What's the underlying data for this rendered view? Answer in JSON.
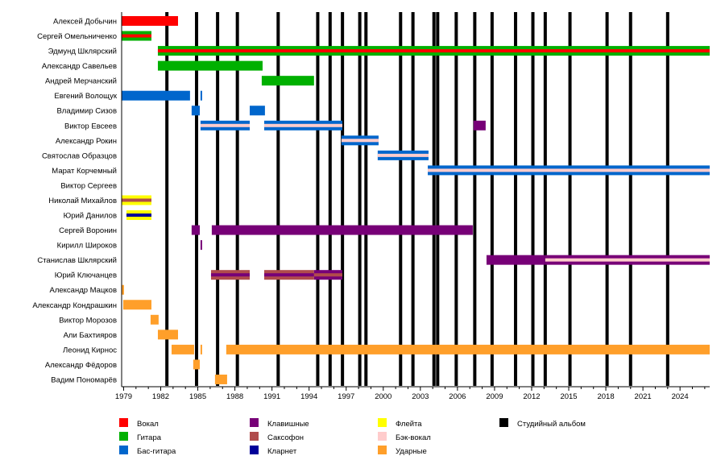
{
  "chart_data": {
    "type": "timeline",
    "title": "",
    "xlim": [
      1978.84,
      2026.4
    ],
    "x_ticks": [
      1979,
      1982,
      1985,
      1988,
      1991,
      1994,
      1997,
      2000,
      2003,
      2006,
      2009,
      2012,
      2015,
      2018,
      2021,
      2024
    ],
    "members": [
      "Алексей Добычин",
      "Сергей Омельниченко",
      "Эдмунд Шклярский",
      "Александр Савельев",
      "Андрей Мерчанский",
      "Евгений Волощук",
      "Владимир Сизов",
      "Виктор Евсеев",
      "Александр Рокин",
      "Святослав Образцов",
      "Марат Корчемный",
      "Виктор Сергеев",
      "Николай Михайлов",
      "Юрий Данилов",
      "Сергей Воронин",
      "Кирилл Широков",
      "Станислав Шклярский",
      "Юрий Ключанцев",
      "Александр Мацков",
      "Александр Кондрашкин",
      "Виктор Морозов",
      "Али Бахтияров",
      "Леонид Кирнос",
      "Александр Фёдоров",
      "Вадим Пономарёв"
    ],
    "roles": {
      "vocal": {
        "label": "Вокал",
        "color": "#ff0000"
      },
      "guitar": {
        "label": "Гитара",
        "color": "#00b000"
      },
      "bass": {
        "label": "Бас-гитара",
        "color": "#0066cc"
      },
      "keys": {
        "label": "Клавишные",
        "color": "#770077"
      },
      "sax": {
        "label": "Саксофон",
        "color": "#b04c4c"
      },
      "clarinet": {
        "label": "Кларнет",
        "color": "#000099"
      },
      "flute": {
        "label": "Флейта",
        "color": "#ffff00"
      },
      "backing": {
        "label": "Бэк-вокал",
        "color": "#ffcccc"
      },
      "drums": {
        "label": "Ударные",
        "color": "#ff9f2a"
      },
      "album": {
        "label": "Студийный альбом",
        "color": "#000000"
      }
    },
    "legend_order": [
      "vocal",
      "guitar",
      "bass",
      "keys",
      "sax",
      "clarinet",
      "flute",
      "backing",
      "drums",
      "album"
    ],
    "legend_placement": "bottom",
    "bars": [
      {
        "member": 0,
        "start": 1978.84,
        "end": 1983.4,
        "role": "vocal"
      },
      {
        "member": 1,
        "start": 1978.84,
        "end": 1981.25,
        "role": "guitar",
        "stripe": "vocal"
      },
      {
        "member": 2,
        "start": 1981.77,
        "end": 2026.4,
        "role": "guitar",
        "stripe": "vocal"
      },
      {
        "member": 3,
        "start": 1981.77,
        "end": 1990.24,
        "role": "guitar"
      },
      {
        "member": 4,
        "start": 1990.17,
        "end": 1994.4,
        "role": "guitar"
      },
      {
        "member": 5,
        "start": 1978.84,
        "end": 1984.37,
        "role": "bass"
      },
      {
        "member": 5,
        "start": 1985.22,
        "end": 1985.35,
        "role": "bass"
      },
      {
        "member": 6,
        "start": 1984.5,
        "end": 1985.16,
        "role": "bass"
      },
      {
        "member": 6,
        "start": 1989.2,
        "end": 1990.43,
        "role": "bass"
      },
      {
        "member": 7,
        "start": 1985.22,
        "end": 1989.2,
        "role": "bass",
        "stripe": "backing"
      },
      {
        "member": 7,
        "start": 1990.37,
        "end": 1996.69,
        "role": "bass",
        "stripe": "backing"
      },
      {
        "member": 7,
        "start": 2007.3,
        "end": 2008.28,
        "role": "keys"
      },
      {
        "member": 8,
        "start": 1996.62,
        "end": 1999.62,
        "role": "bass",
        "stripe": "backing"
      },
      {
        "member": 9,
        "start": 1999.55,
        "end": 2003.66,
        "role": "bass",
        "stripe": "backing"
      },
      {
        "member": 10,
        "start": 2003.6,
        "end": 2026.4,
        "role": "bass",
        "stripe": "backing"
      },
      {
        "member": 12,
        "start": 1978.84,
        "end": 1981.25,
        "role": "flute",
        "stripe": "sax"
      },
      {
        "member": 13,
        "start": 1979.23,
        "end": 1981.25,
        "role": "flute",
        "stripe": "clarinet"
      },
      {
        "member": 14,
        "start": 1984.5,
        "end": 1985.16,
        "role": "keys"
      },
      {
        "member": 14,
        "start": 1986.13,
        "end": 2007.24,
        "role": "keys"
      },
      {
        "member": 15,
        "start": 1985.22,
        "end": 1985.35,
        "role": "keys"
      },
      {
        "member": 16,
        "start": 2008.35,
        "end": 2013.1,
        "role": "keys"
      },
      {
        "member": 16,
        "start": 2013.1,
        "end": 2026.4,
        "role": "keys",
        "stripe": "backing"
      },
      {
        "member": 17,
        "start": 1986.07,
        "end": 1989.2,
        "role": "sax",
        "stripe": "keys"
      },
      {
        "member": 17,
        "start": 1990.37,
        "end": 1994.4,
        "role": "sax",
        "stripe": "keys"
      },
      {
        "member": 17,
        "start": 1994.4,
        "end": 1996.69,
        "role": "keys",
        "stripe": "sax"
      },
      {
        "member": 18,
        "start": 1978.84,
        "end": 1979.03,
        "role": "drums"
      },
      {
        "member": 19,
        "start": 1978.97,
        "end": 1981.25,
        "role": "drums"
      },
      {
        "member": 20,
        "start": 1981.18,
        "end": 1981.83,
        "role": "drums"
      },
      {
        "member": 21,
        "start": 1981.77,
        "end": 1983.4,
        "role": "drums"
      },
      {
        "member": 22,
        "start": 1982.88,
        "end": 1984.7,
        "role": "drums"
      },
      {
        "member": 22,
        "start": 1985.22,
        "end": 1985.35,
        "role": "drums"
      },
      {
        "member": 22,
        "start": 1987.3,
        "end": 2026.4,
        "role": "drums"
      },
      {
        "member": 23,
        "start": 1984.63,
        "end": 1985.16,
        "role": "drums"
      },
      {
        "member": 24,
        "start": 1986.39,
        "end": 1987.37,
        "role": "drums"
      }
    ],
    "albums": [
      1982.5,
      1984.9,
      1986.6,
      1988.2,
      1991.5,
      1994.7,
      1995.7,
      1996.7,
      1998.1,
      1998.6,
      2001.4,
      2002.4,
      2004.1,
      2004.4,
      2005.9,
      2007.4,
      2008.8,
      2010.7,
      2012.1,
      2013.1,
      2015.1,
      2018.1,
      2020.0,
      2023.0
    ]
  }
}
